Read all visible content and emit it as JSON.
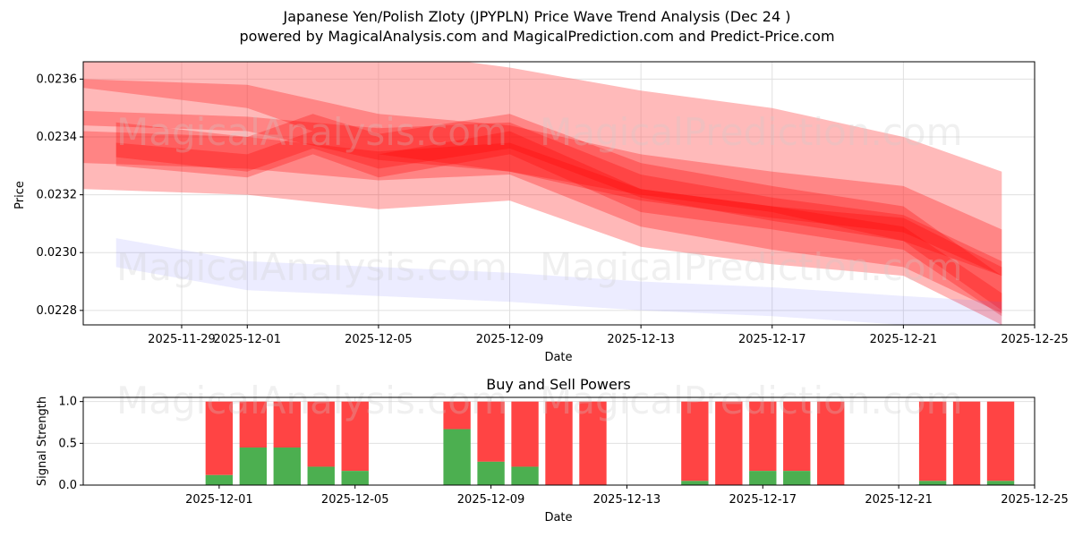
{
  "title": {
    "line1": "Japanese Yen/Polish Zloty (JPYPLN) Price Wave Trend Analysis (Dec 24 )",
    "line2": "powered by MagicalAnalysis.com and MagicalPrediction.com and Predict-Price.com"
  },
  "watermarks": {
    "left": "MagicalAnalysis.com",
    "right": "MagicalPrediction.com"
  },
  "colors": {
    "band": "#ff0000",
    "band_light": "#ff6666",
    "blue_band": "#6666ff",
    "buy": "#4caf50",
    "sell": "#ff4444",
    "grid": "#e0e0e0"
  },
  "chart_data": [
    {
      "type": "area",
      "title": "",
      "xlabel": "Date",
      "ylabel": "Price",
      "xlim": [
        "2025-11-26",
        "2025-12-25"
      ],
      "ylim": [
        0.02275,
        0.02366
      ],
      "grid": true,
      "x_ticks": [
        "2025-11-29",
        "2025-12-01",
        "2025-12-05",
        "2025-12-09",
        "2025-12-13",
        "2025-12-17",
        "2025-12-21",
        "2025-12-25"
      ],
      "y_ticks": [
        0.0228,
        0.023,
        0.0232,
        0.0234,
        0.0236
      ],
      "series": [
        {
          "name": "band-1",
          "x": [
            "2025-11-26",
            "2025-12-01",
            "2025-12-05",
            "2025-12-09",
            "2025-12-13",
            "2025-12-17",
            "2025-12-21",
            "2025-12-24"
          ],
          "values": [
            0.02375,
            0.02368,
            0.02352,
            0.02346,
            0.02338,
            0.02332,
            0.02322,
            0.0231
          ],
          "width": 0.00036
        },
        {
          "name": "band-2",
          "x": [
            "2025-11-26",
            "2025-12-01",
            "2025-12-05",
            "2025-12-09",
            "2025-12-13",
            "2025-12-17",
            "2025-12-21",
            "2025-12-24"
          ],
          "values": [
            0.02352,
            0.0235,
            0.0234,
            0.02336,
            0.02326,
            0.0232,
            0.02315,
            0.023
          ],
          "width": 0.00016
        },
        {
          "name": "band-3",
          "x": [
            "2025-11-26",
            "2025-12-01",
            "2025-12-05",
            "2025-12-09",
            "2025-12-13",
            "2025-12-17",
            "2025-12-21",
            "2025-12-24"
          ],
          "values": [
            0.0234,
            0.02338,
            0.02334,
            0.02336,
            0.02318,
            0.0231,
            0.02304,
            0.02288
          ],
          "width": 0.00018
        },
        {
          "name": "band-4",
          "x": [
            "2025-11-26",
            "2025-12-01",
            "2025-12-05",
            "2025-12-09",
            "2025-12-13",
            "2025-12-17",
            "2025-12-21",
            "2025-12-24"
          ],
          "values": [
            0.02332,
            0.0233,
            0.02325,
            0.02328,
            0.02312,
            0.02306,
            0.02302,
            0.02285
          ],
          "width": 0.0002
        },
        {
          "name": "band-5",
          "x": [
            "2025-11-27",
            "2025-12-01",
            "2025-12-03",
            "2025-12-05",
            "2025-12-09",
            "2025-12-13",
            "2025-12-17",
            "2025-12-21",
            "2025-12-24"
          ],
          "values": [
            0.02339,
            0.02334,
            0.02342,
            0.02335,
            0.02342,
            0.02325,
            0.02317,
            0.0231,
            0.02286
          ],
          "width": 0.00012
        },
        {
          "name": "band-6",
          "x": [
            "2025-11-27",
            "2025-12-01",
            "2025-12-03",
            "2025-12-05",
            "2025-12-09",
            "2025-12-13",
            "2025-12-17",
            "2025-12-21",
            "2025-12-24"
          ],
          "values": [
            0.02334,
            0.0233,
            0.02338,
            0.0233,
            0.02338,
            0.02318,
            0.02312,
            0.02305,
            0.02282
          ],
          "width": 8e-05
        },
        {
          "name": "band-7",
          "x": [
            "2025-11-27",
            "2025-12-01",
            "2025-12-05",
            "2025-12-09",
            "2025-12-13",
            "2025-12-17",
            "2025-12-21",
            "2025-12-24"
          ],
          "values": [
            0.023,
            0.02292,
            0.0229,
            0.02288,
            0.02285,
            0.02283,
            0.0228,
            0.02278
          ],
          "width": 0.0001
        }
      ]
    },
    {
      "type": "bar",
      "title": "Buy and Sell Powers",
      "xlabel": "Date",
      "ylabel": "Signal Strength",
      "xlim": [
        "2025-11-27",
        "2025-12-25"
      ],
      "ylim": [
        0,
        1.05
      ],
      "grid": true,
      "x_ticks": [
        "2025-12-01",
        "2025-12-05",
        "2025-12-09",
        "2025-12-13",
        "2025-12-17",
        "2025-12-21",
        "2025-12-25"
      ],
      "y_ticks": [
        0.0,
        0.5,
        1.0
      ],
      "categories": [
        "2025-12-01",
        "2025-12-02",
        "2025-12-03",
        "2025-12-04",
        "2025-12-05",
        "2025-12-08",
        "2025-12-09",
        "2025-12-10",
        "2025-12-11",
        "2025-12-12",
        "2025-12-15",
        "2025-12-16",
        "2025-12-17",
        "2025-12-18",
        "2025-12-19",
        "2025-12-22",
        "2025-12-23",
        "2025-12-24"
      ],
      "series": [
        {
          "name": "Buy",
          "values": [
            0.12,
            0.45,
            0.45,
            0.22,
            0.17,
            0.67,
            0.28,
            0.22,
            0.0,
            0.0,
            0.05,
            0.0,
            0.17,
            0.17,
            0.0,
            0.05,
            0.0,
            0.05
          ]
        },
        {
          "name": "Sell",
          "values": [
            0.88,
            0.55,
            0.55,
            0.78,
            0.83,
            0.33,
            0.72,
            0.78,
            1.0,
            1.0,
            0.95,
            1.0,
            0.83,
            0.83,
            1.0,
            0.95,
            1.0,
            0.95
          ]
        }
      ]
    }
  ]
}
